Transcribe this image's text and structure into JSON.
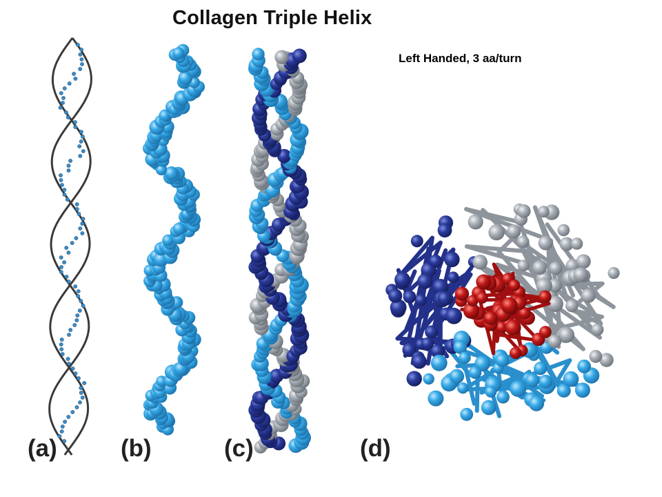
{
  "figure": {
    "title": "Collagen Triple Helix",
    "subtitle": "Left Handed, 3 aa/turn",
    "panels": [
      {
        "label": "(a)",
        "view": "ribbon-backbone"
      },
      {
        "label": "(b)",
        "view": "single-chain-spacefill"
      },
      {
        "label": "(c)",
        "view": "triple-chain-spacefill"
      },
      {
        "label": "(d)",
        "view": "end-on-ball-and-stick"
      }
    ],
    "colors": {
      "ribbon": "#3a3a3a",
      "chain_light_blue": "#35a8e6",
      "chain_dark_blue": "#2a3a9a",
      "chain_gray": "#a8aeb5",
      "core_red": "#c01818"
    }
  }
}
